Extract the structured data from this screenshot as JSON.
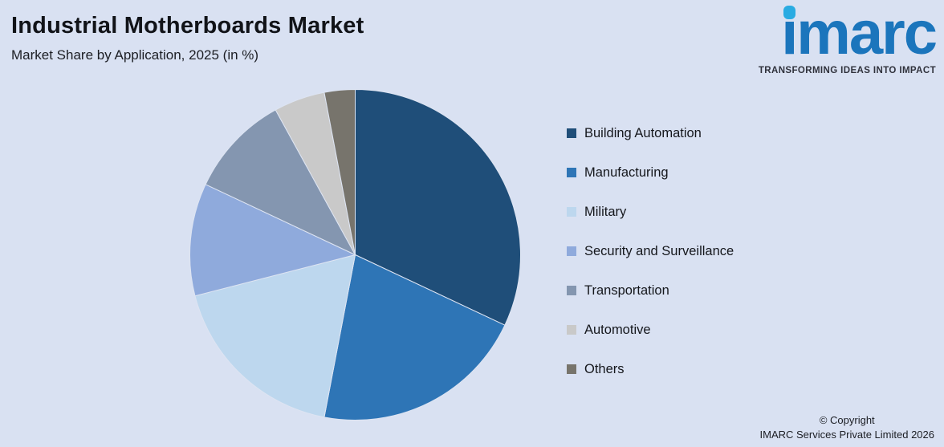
{
  "header": {
    "title": "Industrial Motherboards Market",
    "subtitle": "Market Share by Application, 2025 (in %)"
  },
  "logo": {
    "text": "imarc",
    "tagline": "TRANSFORMING IDEAS INTO IMPACT",
    "brand_color": "#1b75bc",
    "dot_color": "#29abe2"
  },
  "chart_data": {
    "type": "pie",
    "title": "Industrial Motherboards Market",
    "subtitle": "Market Share by Application, 2025 (in %)",
    "unit": "%",
    "year": "2025",
    "categories": [
      "Building Automation",
      "Manufacturing",
      "Military",
      "Security and Surveillance",
      "Transportation",
      "Automotive",
      "Others"
    ],
    "values": [
      32,
      21,
      18,
      11,
      10,
      5,
      3
    ],
    "colors": [
      "#1f4e79",
      "#2e75b6",
      "#bdd7ee",
      "#8faadc",
      "#8496b0",
      "#c9c9c9",
      "#77746c"
    ],
    "start_angle_deg": 0,
    "direction": "clockwise",
    "legend_position": "right",
    "background_color": "#d9e1f2"
  },
  "footer": {
    "line1": "© Copyright",
    "line2": "IMARC Services Private Limited 2026"
  }
}
